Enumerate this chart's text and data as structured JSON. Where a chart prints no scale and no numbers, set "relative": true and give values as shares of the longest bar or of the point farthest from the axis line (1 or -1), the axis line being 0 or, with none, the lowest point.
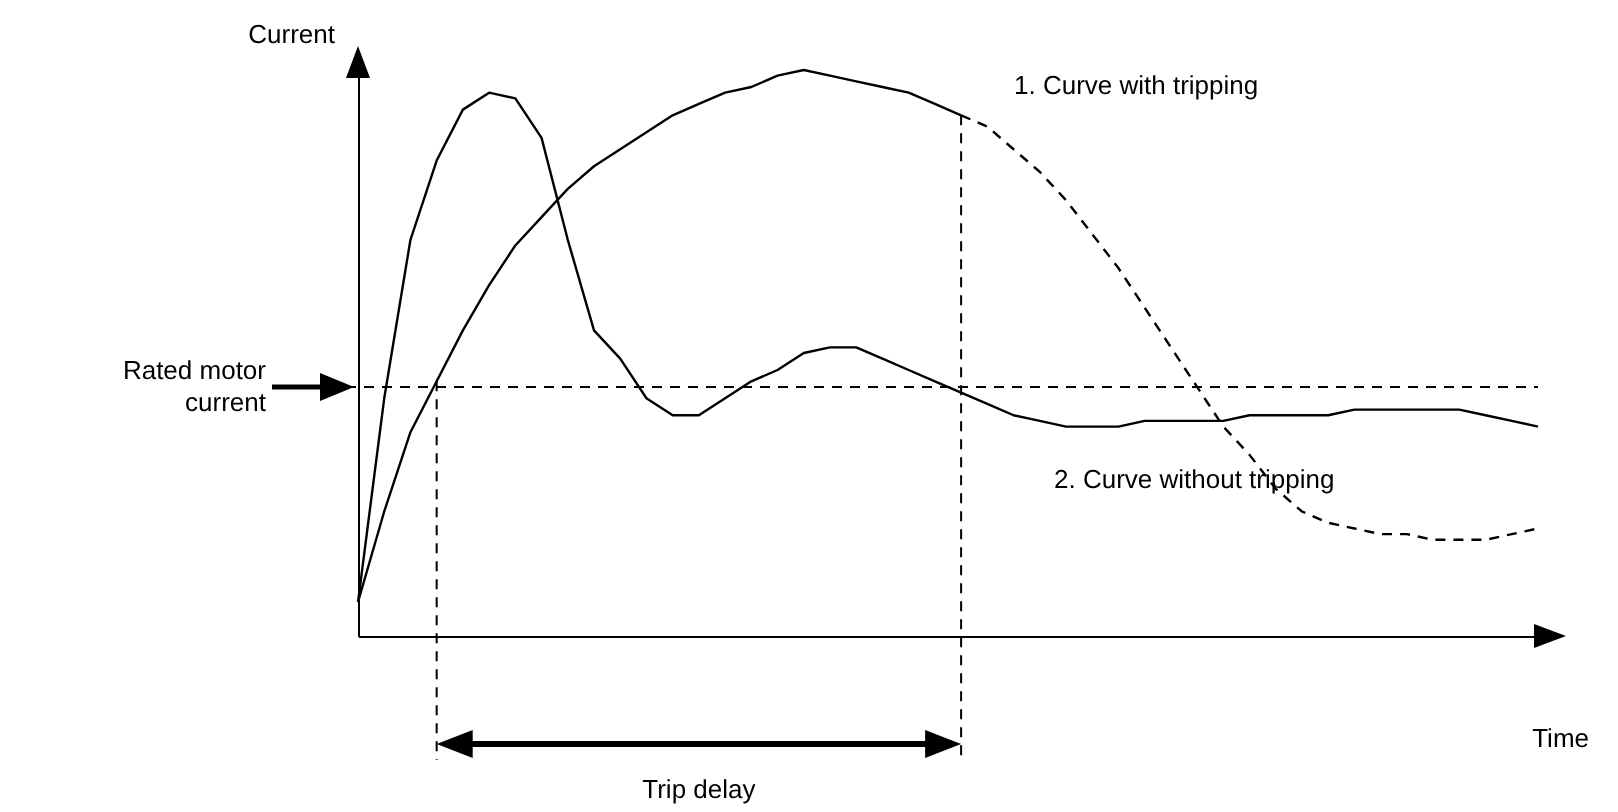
{
  "chart_data": {
    "type": "line",
    "relative": true,
    "xlabel": "Time",
    "ylabel": "Current",
    "categories": [
      null,
      null,
      null,
      null,
      null,
      null,
      null,
      null,
      null,
      null,
      null,
      null,
      null,
      null,
      null,
      null,
      null,
      null,
      null,
      null,
      null,
      null,
      null,
      null,
      null,
      null,
      null,
      null,
      null,
      null,
      null,
      null,
      null,
      null,
      null,
      null,
      null,
      null,
      null,
      null,
      null,
      null,
      null,
      null,
      null,
      null
    ],
    "series": [
      {
        "name": "1. Curve with tripping",
        "color": "#000000",
        "line_style": "solid",
        "values": [
          0.06,
          0.22,
          0.36,
          0.45,
          0.54,
          0.62,
          0.69,
          0.74,
          0.79,
          0.83,
          0.86,
          0.89,
          0.92,
          0.94,
          0.96,
          0.97,
          0.99,
          1.0,
          0.99,
          0.98,
          0.97,
          0.96,
          0.94,
          0.92,
          null,
          null,
          null,
          null,
          null,
          null,
          null,
          null,
          null,
          null,
          null,
          null,
          null,
          null,
          null,
          null,
          null,
          null,
          null,
          null,
          null,
          null
        ]
      },
      {
        "color": "#000000",
        "line_style": "dashed",
        "values": [
          null,
          null,
          null,
          null,
          null,
          null,
          null,
          null,
          null,
          null,
          null,
          null,
          null,
          null,
          null,
          null,
          null,
          null,
          null,
          null,
          null,
          null,
          null,
          0.92,
          0.9,
          0.86,
          0.82,
          0.77,
          0.71,
          0.65,
          0.58,
          0.51,
          0.44,
          0.37,
          0.32,
          0.26,
          0.22,
          0.2,
          0.19,
          0.18,
          0.18,
          0.17,
          0.17,
          0.17,
          0.18,
          0.19
        ]
      },
      {
        "name": "2. Curve without tripping",
        "color": "#000000",
        "line_style": "solid",
        "values": [
          0.06,
          0.42,
          0.7,
          0.84,
          0.93,
          0.96,
          0.95,
          0.88,
          0.7,
          0.54,
          0.49,
          0.42,
          0.39,
          0.39,
          0.42,
          0.45,
          0.47,
          0.5,
          0.51,
          0.51,
          0.49,
          0.47,
          0.45,
          0.43,
          0.41,
          0.39,
          0.38,
          0.37,
          0.37,
          0.37,
          0.38,
          0.38,
          0.38,
          0.38,
          0.39,
          0.39,
          0.39,
          0.39,
          0.4,
          0.4,
          0.4,
          0.4,
          0.4,
          0.39,
          0.38,
          0.37
        ]
      }
    ],
    "ref_lines": [
      {
        "axis": "y",
        "value": 0.44,
        "label": "Rated motor current",
        "line_style": "dashed"
      }
    ],
    "annotations": [
      "Trip delay"
    ]
  }
}
